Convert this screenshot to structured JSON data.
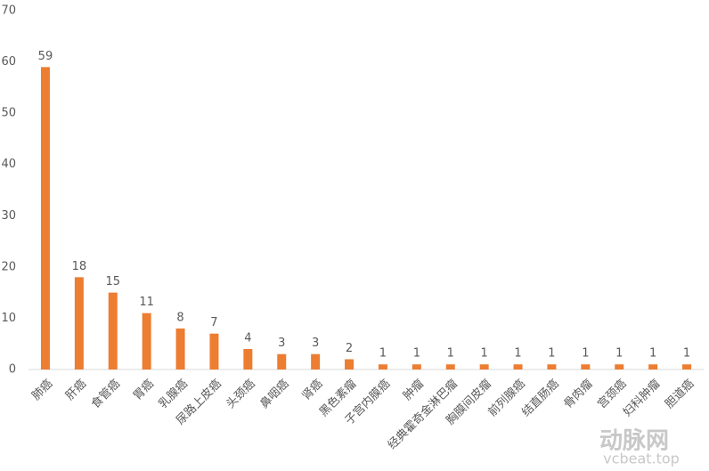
{
  "chart_data": {
    "type": "bar",
    "categories": [
      "肺癌",
      "肝癌",
      "食管癌",
      "胃癌",
      "乳腺癌",
      "尿路上皮癌",
      "头颈癌",
      "鼻咽癌",
      "肾癌",
      "黑色素瘤",
      "子宫内膜癌",
      "肿瘤",
      "经典霍奇金淋巴瘤",
      "胸膜间皮瘤",
      "前列腺癌",
      "结直肠癌",
      "骨肉瘤",
      "宫颈癌",
      "妇科肿瘤",
      "胆道癌"
    ],
    "values": [
      59,
      18,
      15,
      11,
      8,
      7,
      4,
      3,
      3,
      2,
      1,
      1,
      1,
      1,
      1,
      1,
      1,
      1,
      1,
      1
    ],
    "color": "#ed7d31",
    "ylim": [
      0,
      70
    ],
    "yticks": [
      0,
      10,
      20,
      30,
      40,
      50,
      60,
      70
    ],
    "grid": false,
    "watermark": {
      "name": "动脉网",
      "site": "vcbeat.top"
    }
  }
}
